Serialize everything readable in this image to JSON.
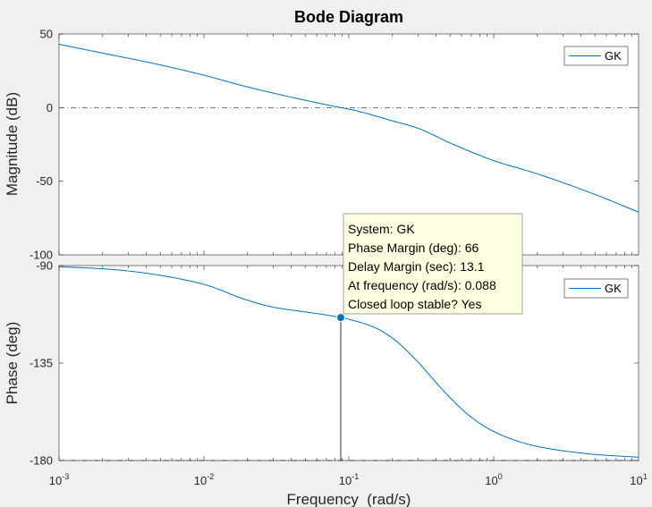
{
  "figure": {
    "title": "Bode Diagram",
    "background_color": "#f0f0f0",
    "axes_color": "#ffffff",
    "line_color": "#0072bd",
    "tooltip_bg": "#ffffe1"
  },
  "chart_data": [
    {
      "type": "line",
      "panel": "magnitude",
      "ylabel": "Magnitude (dB)",
      "xscale": "log",
      "xlim": [
        0.001,
        10
      ],
      "ylim": [
        -100,
        50
      ],
      "yticks": [
        "50",
        "0",
        "-50",
        "-100"
      ],
      "ytick_values": [
        50,
        0,
        -50,
        -100
      ],
      "reference_line": 0,
      "grid": false,
      "legend": {
        "location": "top-right",
        "entries": [
          "GK"
        ]
      },
      "series": [
        {
          "name": "GK",
          "x": [
            0.001,
            0.002,
            0.005,
            0.01,
            0.02,
            0.05,
            0.088,
            0.1,
            0.2,
            0.3,
            0.5,
            1,
            2,
            5,
            10
          ],
          "y": [
            43,
            37,
            29,
            22,
            14,
            5,
            0,
            -1,
            -9,
            -14,
            -24,
            -36,
            -45,
            -59,
            -71
          ]
        }
      ]
    },
    {
      "type": "line",
      "panel": "phase",
      "ylabel": "Phase (deg)",
      "xlabel": "Frequency  (rad/s)",
      "xscale": "log",
      "xlim": [
        0.001,
        10
      ],
      "ylim": [
        -180,
        -90
      ],
      "yticks": [
        "-90",
        "-135",
        "-180"
      ],
      "ytick_values": [
        -90,
        -135,
        -180
      ],
      "xticks": [
        {
          "base": "10",
          "exp": "-3",
          "value": 0.001
        },
        {
          "base": "10",
          "exp": "-2",
          "value": 0.01
        },
        {
          "base": "10",
          "exp": "-1",
          "value": 0.1
        },
        {
          "base": "10",
          "exp": "0",
          "value": 1
        },
        {
          "base": "10",
          "exp": "1",
          "value": 10
        }
      ],
      "reference_line": -180,
      "grid": false,
      "legend": {
        "location": "top-right",
        "entries": [
          "GK"
        ]
      },
      "series": [
        {
          "name": "GK",
          "x": [
            0.001,
            0.002,
            0.003,
            0.005,
            0.01,
            0.02,
            0.03,
            0.05,
            0.07,
            0.088,
            0.1,
            0.15,
            0.2,
            0.3,
            0.4,
            0.5,
            0.7,
            1,
            1.5,
            2,
            3,
            5,
            10
          ],
          "y": [
            -90.5,
            -91.5,
            -92.5,
            -94.5,
            -98.7,
            -106,
            -109.2,
            -111.4,
            -112.8,
            -114,
            -114.8,
            -118.5,
            -123.5,
            -134.5,
            -144,
            -151,
            -160,
            -166.6,
            -171.3,
            -173.5,
            -175.5,
            -177.2,
            -178.5
          ]
        }
      ],
      "marker": {
        "x": 0.088,
        "y": -114
      }
    }
  ],
  "datatip": {
    "line1": "System: GK",
    "line2": "Phase Margin (deg): 66",
    "line3": "Delay Margin (sec): 13.1",
    "line4": "At frequency (rad/s): 0.088",
    "line5": "Closed loop stable? Yes"
  }
}
